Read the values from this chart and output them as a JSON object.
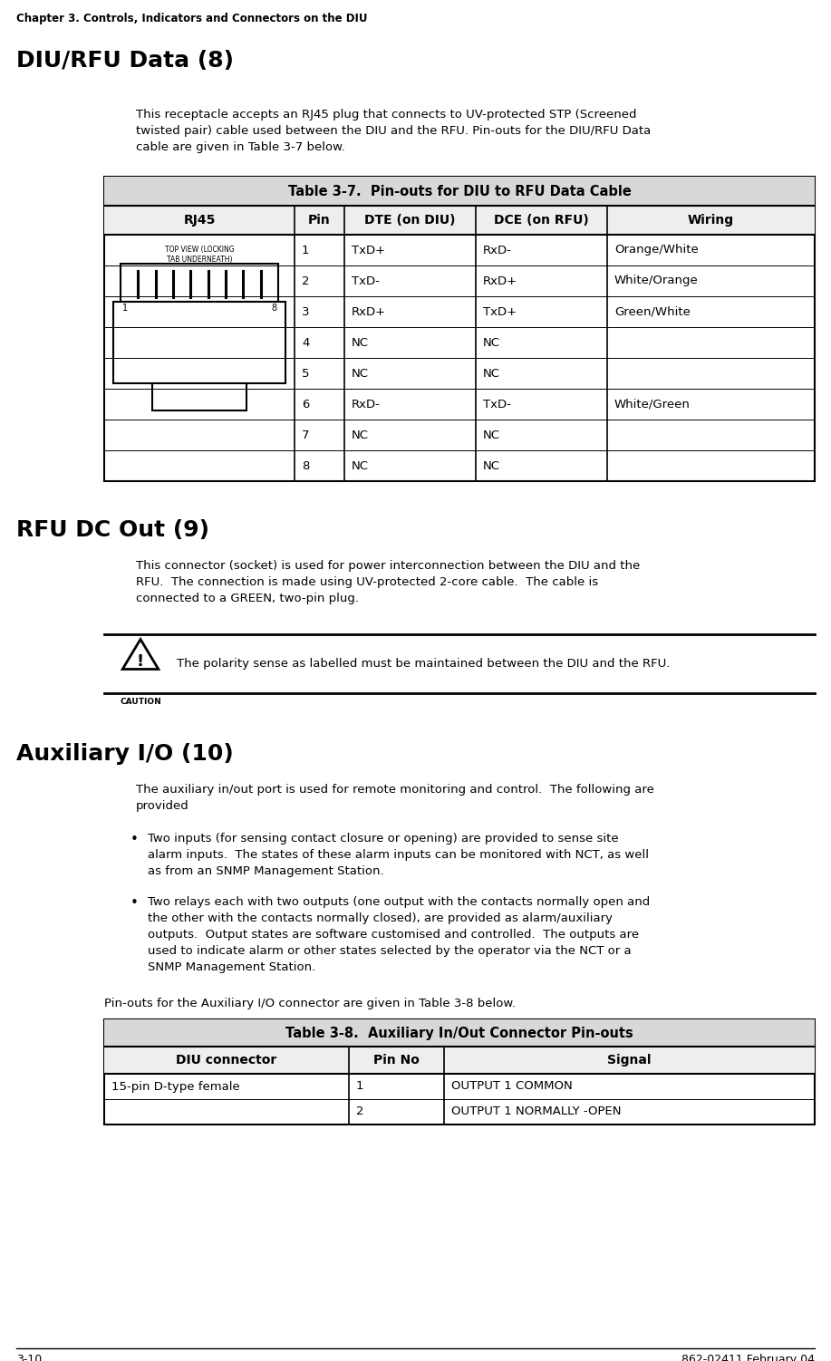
{
  "page_header": "Chapter 3. Controls, Indicators and Connectors on the DIU",
  "section1_title": "DIU/RFU Data (8)",
  "section1_body": "This receptacle accepts an RJ45 plug that connects to UV-protected STP (Screened\ntwisted pair) cable used between the DIU and the RFU. Pin-outs for the DIU/RFU Data\ncable are given in Table 3-7 below.",
  "table1_title": "Table 3-7.  Pin-outs for DIU to RFU Data Cable",
  "table1_headers": [
    "RJ45",
    "Pin",
    "DTE (on DIU)",
    "DCE (on RFU)",
    "Wiring"
  ],
  "table1_rows": [
    [
      "",
      "1",
      "TxD+",
      "RxD-",
      "Orange/White"
    ],
    [
      "",
      "2",
      "TxD-",
      "RxD+",
      "White/Orange"
    ],
    [
      "",
      "3",
      "RxD+",
      "TxD+",
      "Green/White"
    ],
    [
      "",
      "4",
      "NC",
      "NC",
      ""
    ],
    [
      "",
      "5",
      "NC",
      "NC",
      ""
    ],
    [
      "",
      "6",
      "RxD-",
      "TxD-",
      "White/Green"
    ],
    [
      "",
      "7",
      "NC",
      "NC",
      ""
    ],
    [
      "",
      "8",
      "NC",
      "NC",
      ""
    ]
  ],
  "section2_title": "RFU DC Out (9)",
  "section2_body": "This connector (socket) is used for power interconnection between the DIU and the\nRFU.  The connection is made using UV-protected 2-core cable.  The cable is\nconnected to a GREEN, two-pin plug.",
  "caution_text": "The polarity sense as labelled must be maintained between the DIU and the RFU.",
  "section3_title": "Auxiliary I/O (10)",
  "section3_body": "The auxiliary in/out port is used for remote monitoring and control.  The following are\nprovided",
  "bullet1": "Two inputs (for sensing contact closure or opening) are provided to sense site\nalarm inputs.  The states of these alarm inputs can be monitored with NCT, as well\nas from an SNMP Management Station.",
  "bullet2": "Two relays each with two outputs (one output with the contacts normally open and\nthe other with the contacts normally closed), are provided as alarm/auxiliary\noutputs.  Output states are software customised and controlled.  The outputs are\nused to indicate alarm or other states selected by the operator via the NCT or a\nSNMP Management Station.",
  "section3_table_intro": "Pin-outs for the Auxiliary I/O connector are given in Table 3-8 below.",
  "table2_title": "Table 3-8.  Auxiliary In/Out Connector Pin-outs",
  "table2_headers": [
    "DIU connector",
    "Pin No",
    "Signal"
  ],
  "table2_rows": [
    [
      "15-pin D-type female",
      "1",
      "OUTPUT 1 COMMON"
    ],
    [
      "",
      "2",
      "OUTPUT 1 NORMALLY -OPEN"
    ]
  ],
  "footer_left": "3-10",
  "footer_right": "862-02411 February 04"
}
